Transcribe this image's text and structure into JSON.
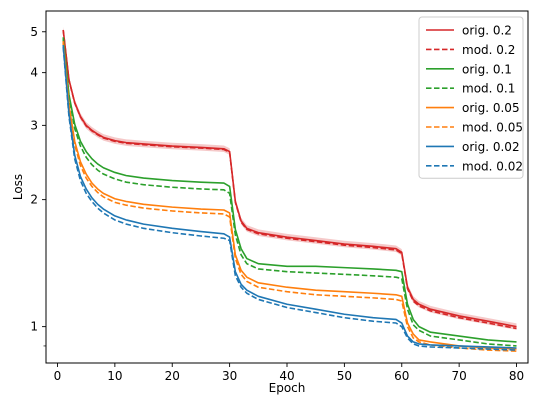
{
  "chart_data": {
    "type": "line",
    "title": "",
    "xlabel": "Epoch",
    "ylabel": "Loss",
    "xlim": [
      -2,
      82
    ],
    "ylim": [
      0.82,
      5.6
    ],
    "yscale": "log",
    "xticks": [
      0,
      10,
      20,
      30,
      40,
      50,
      60,
      70,
      80
    ],
    "yticks": [
      1,
      2,
      3,
      4,
      5
    ],
    "yminor_ticks": [
      0.9
    ],
    "grid": false,
    "legend": "top-right",
    "series": [
      {
        "name": "orig. 0.2",
        "color": "#d62728",
        "style": "solid",
        "band": true,
        "x": [
          1,
          2,
          3,
          4,
          5,
          6,
          7,
          8,
          10,
          12,
          15,
          20,
          25,
          29,
          30,
          31,
          32,
          33,
          35,
          40,
          45,
          50,
          55,
          59,
          60,
          61,
          62,
          63,
          65,
          70,
          75,
          80
        ],
        "y": [
          5.05,
          3.85,
          3.4,
          3.15,
          3.0,
          2.92,
          2.86,
          2.81,
          2.76,
          2.73,
          2.71,
          2.68,
          2.66,
          2.64,
          2.6,
          1.98,
          1.78,
          1.71,
          1.67,
          1.63,
          1.6,
          1.57,
          1.55,
          1.53,
          1.5,
          1.24,
          1.16,
          1.13,
          1.1,
          1.06,
          1.03,
          1.0
        ]
      },
      {
        "name": "mod. 0.2",
        "color": "#d62728",
        "style": "dashed",
        "x": [
          1,
          2,
          3,
          4,
          5,
          6,
          7,
          8,
          10,
          12,
          15,
          20,
          25,
          29,
          30,
          31,
          32,
          33,
          35,
          40,
          45,
          50,
          55,
          59,
          60,
          61,
          62,
          63,
          65,
          70,
          75,
          80
        ],
        "y": [
          5.04,
          3.84,
          3.39,
          3.14,
          2.99,
          2.91,
          2.85,
          2.8,
          2.75,
          2.72,
          2.7,
          2.67,
          2.65,
          2.63,
          2.59,
          1.97,
          1.77,
          1.7,
          1.66,
          1.62,
          1.59,
          1.56,
          1.54,
          1.52,
          1.49,
          1.23,
          1.15,
          1.12,
          1.09,
          1.05,
          1.02,
          0.99
        ]
      },
      {
        "name": "orig. 0.1",
        "color": "#2ca02c",
        "style": "solid",
        "x": [
          1,
          2,
          3,
          4,
          5,
          6,
          7,
          8,
          10,
          12,
          15,
          20,
          25,
          29,
          30,
          31,
          32,
          33,
          35,
          40,
          45,
          50,
          55,
          59,
          60,
          61,
          62,
          63,
          65,
          70,
          75,
          80
        ],
        "y": [
          4.85,
          3.55,
          3.02,
          2.75,
          2.6,
          2.5,
          2.43,
          2.38,
          2.32,
          2.28,
          2.25,
          2.22,
          2.2,
          2.19,
          2.15,
          1.7,
          1.53,
          1.45,
          1.41,
          1.39,
          1.39,
          1.38,
          1.37,
          1.36,
          1.35,
          1.13,
          1.04,
          1.0,
          0.97,
          0.95,
          0.93,
          0.92
        ]
      },
      {
        "name": "mod. 0.1",
        "color": "#2ca02c",
        "style": "dashed",
        "x": [
          1,
          2,
          3,
          4,
          5,
          6,
          7,
          8,
          10,
          12,
          15,
          20,
          25,
          29,
          30,
          31,
          32,
          33,
          35,
          40,
          45,
          50,
          55,
          59,
          60,
          61,
          62,
          63,
          65,
          70,
          75,
          80
        ],
        "y": [
          4.8,
          3.5,
          2.95,
          2.68,
          2.52,
          2.42,
          2.35,
          2.3,
          2.24,
          2.2,
          2.17,
          2.14,
          2.12,
          2.11,
          2.07,
          1.65,
          1.48,
          1.41,
          1.37,
          1.35,
          1.34,
          1.33,
          1.32,
          1.31,
          1.3,
          1.1,
          1.01,
          0.98,
          0.95,
          0.93,
          0.91,
          0.9
        ]
      },
      {
        "name": "orig. 0.05",
        "color": "#ff7f0e",
        "style": "solid",
        "x": [
          1,
          2,
          3,
          4,
          5,
          6,
          7,
          8,
          10,
          12,
          15,
          20,
          25,
          29,
          30,
          31,
          32,
          33,
          35,
          40,
          45,
          50,
          55,
          59,
          60,
          61,
          62,
          63,
          65,
          70,
          75,
          80
        ],
        "y": [
          4.75,
          3.35,
          2.75,
          2.46,
          2.3,
          2.19,
          2.12,
          2.07,
          2.01,
          1.98,
          1.95,
          1.92,
          1.9,
          1.89,
          1.86,
          1.48,
          1.36,
          1.31,
          1.27,
          1.24,
          1.22,
          1.21,
          1.2,
          1.19,
          1.18,
          1.02,
          0.96,
          0.93,
          0.92,
          0.9,
          0.89,
          0.885
        ]
      },
      {
        "name": "mod. 0.05",
        "color": "#ff7f0e",
        "style": "dashed",
        "x": [
          1,
          2,
          3,
          4,
          5,
          6,
          7,
          8,
          10,
          12,
          15,
          20,
          25,
          29,
          30,
          31,
          32,
          33,
          35,
          40,
          45,
          50,
          55,
          59,
          60,
          61,
          62,
          63,
          65,
          70,
          75,
          80
        ],
        "y": [
          4.7,
          3.3,
          2.7,
          2.41,
          2.25,
          2.15,
          2.08,
          2.03,
          1.97,
          1.94,
          1.91,
          1.88,
          1.86,
          1.85,
          1.82,
          1.45,
          1.33,
          1.28,
          1.24,
          1.21,
          1.19,
          1.18,
          1.17,
          1.16,
          1.15,
          1.0,
          0.94,
          0.92,
          0.905,
          0.89,
          0.88,
          0.875
        ]
      },
      {
        "name": "orig. 0.02",
        "color": "#1f77b4",
        "style": "solid",
        "x": [
          1,
          2,
          3,
          4,
          5,
          6,
          7,
          8,
          10,
          12,
          15,
          20,
          25,
          29,
          30,
          31,
          32,
          33,
          35,
          40,
          45,
          50,
          55,
          59,
          60,
          61,
          62,
          63,
          65,
          70,
          75,
          80
        ],
        "y": [
          4.65,
          3.2,
          2.55,
          2.27,
          2.12,
          2.02,
          1.95,
          1.9,
          1.83,
          1.79,
          1.75,
          1.71,
          1.68,
          1.66,
          1.63,
          1.35,
          1.26,
          1.22,
          1.18,
          1.13,
          1.1,
          1.07,
          1.05,
          1.04,
          1.02,
          0.95,
          0.92,
          0.91,
          0.905,
          0.9,
          0.895,
          0.89
        ]
      },
      {
        "name": "mod. 0.02",
        "color": "#1f77b4",
        "style": "dashed",
        "x": [
          1,
          2,
          3,
          4,
          5,
          6,
          7,
          8,
          10,
          12,
          15,
          20,
          25,
          29,
          30,
          31,
          32,
          33,
          35,
          40,
          45,
          50,
          55,
          59,
          60,
          61,
          62,
          63,
          65,
          70,
          75,
          80
        ],
        "y": [
          4.6,
          3.15,
          2.5,
          2.22,
          2.07,
          1.98,
          1.91,
          1.86,
          1.79,
          1.75,
          1.71,
          1.67,
          1.64,
          1.62,
          1.6,
          1.32,
          1.24,
          1.2,
          1.16,
          1.11,
          1.08,
          1.05,
          1.03,
          1.02,
          1.0,
          0.94,
          0.91,
          0.9,
          0.895,
          0.89,
          0.885,
          0.88
        ]
      }
    ]
  }
}
